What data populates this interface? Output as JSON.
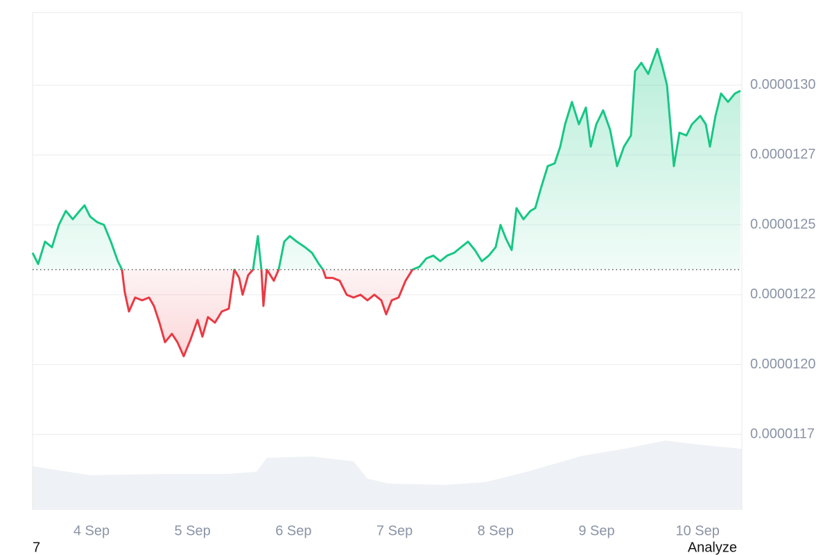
{
  "chart_data": {
    "type": "baseline-area",
    "x": [
      3.417,
      3.472,
      3.54,
      3.609,
      3.677,
      3.746,
      3.815,
      3.883,
      3.931,
      3.986,
      4.055,
      4.124,
      4.192,
      4.261,
      4.302,
      4.329,
      4.371,
      4.432,
      4.501,
      4.57,
      4.618,
      4.673,
      4.728,
      4.796,
      4.851,
      4.913,
      4.981,
      5.05,
      5.098,
      5.153,
      5.222,
      5.29,
      5.359,
      5.414,
      5.462,
      5.496,
      5.551,
      5.599,
      5.647,
      5.682,
      5.702,
      5.736,
      5.805,
      5.853,
      5.908,
      5.963,
      6.032,
      6.114,
      6.183,
      6.251,
      6.292,
      6.32,
      6.388,
      6.457,
      6.526,
      6.594,
      6.663,
      6.732,
      6.8,
      6.869,
      6.917,
      6.972,
      7.04,
      7.109,
      7.178,
      7.246,
      7.315,
      7.384,
      7.452,
      7.521,
      7.59,
      7.658,
      7.727,
      7.795,
      7.864,
      7.933,
      8.001,
      8.049,
      8.104,
      8.159,
      8.207,
      8.276,
      8.345,
      8.393,
      8.448,
      8.516,
      8.585,
      8.64,
      8.688,
      8.756,
      8.825,
      8.894,
      8.942,
      8.997,
      9.065,
      9.134,
      9.203,
      9.271,
      9.34,
      9.381,
      9.443,
      9.511,
      9.601,
      9.649,
      9.697,
      9.765,
      9.82,
      9.889,
      9.944,
      10.026,
      10.081,
      10.122,
      10.177,
      10.232,
      10.301,
      10.369,
      10.424
    ],
    "values": [
      1.24e-05,
      1.236e-05,
      1.244e-05,
      1.242e-05,
      1.25e-05,
      1.255e-05,
      1.252e-05,
      1.255e-05,
      1.257e-05,
      1.253e-05,
      1.251e-05,
      1.25e-05,
      1.244e-05,
      1.237e-05,
      1.234e-05,
      1.226e-05,
      1.219e-05,
      1.224e-05,
      1.223e-05,
      1.224e-05,
      1.221e-05,
      1.215e-05,
      1.208e-05,
      1.211e-05,
      1.208e-05,
      1.203e-05,
      1.209e-05,
      1.216e-05,
      1.21e-05,
      1.217e-05,
      1.215e-05,
      1.219e-05,
      1.22e-05,
      1.234e-05,
      1.231e-05,
      1.225e-05,
      1.232e-05,
      1.234e-05,
      1.246e-05,
      1.234e-05,
      1.221e-05,
      1.234e-05,
      1.23e-05,
      1.234e-05,
      1.244e-05,
      1.246e-05,
      1.244e-05,
      1.242e-05,
      1.24e-05,
      1.236e-05,
      1.234e-05,
      1.231e-05,
      1.231e-05,
      1.23e-05,
      1.225e-05,
      1.224e-05,
      1.225e-05,
      1.223e-05,
      1.225e-05,
      1.223e-05,
      1.218e-05,
      1.223e-05,
      1.224e-05,
      1.23e-05,
      1.234e-05,
      1.235e-05,
      1.238e-05,
      1.239e-05,
      1.237e-05,
      1.239e-05,
      1.24e-05,
      1.242e-05,
      1.244e-05,
      1.241e-05,
      1.237e-05,
      1.239e-05,
      1.242e-05,
      1.25e-05,
      1.245e-05,
      1.241e-05,
      1.256e-05,
      1.252e-05,
      1.255e-05,
      1.256e-05,
      1.263e-05,
      1.271e-05,
      1.272e-05,
      1.278e-05,
      1.286e-05,
      1.294e-05,
      1.286e-05,
      1.292e-05,
      1.278e-05,
      1.286e-05,
      1.291e-05,
      1.284e-05,
      1.271e-05,
      1.278e-05,
      1.282e-05,
      1.305e-05,
      1.308e-05,
      1.304e-05,
      1.313e-05,
      1.307e-05,
      1.3e-05,
      1.271e-05,
      1.283e-05,
      1.282e-05,
      1.286e-05,
      1.289e-05,
      1.286e-05,
      1.278e-05,
      1.289e-05,
      1.297e-05,
      1.294e-05,
      1.297e-05,
      1.298e-05
    ],
    "baseline": 1.234e-05,
    "up_color": "#16c784",
    "down_color": "#ea3943",
    "xlim": [
      3.417,
      10.438
    ],
    "xticks": [
      {
        "value": 4,
        "label": "4 Sep"
      },
      {
        "value": 5,
        "label": "5 Sep"
      },
      {
        "value": 6,
        "label": "6 Sep"
      },
      {
        "value": 7,
        "label": "7 Sep"
      },
      {
        "value": 8,
        "label": "8 Sep"
      },
      {
        "value": 9,
        "label": "9 Sep"
      },
      {
        "value": 10,
        "label": "10 Sep"
      }
    ],
    "ylim": [
      1.148e-05,
      1.326e-05
    ],
    "yticks": [
      {
        "value": 1.3e-05,
        "label": "0.0000130"
      },
      {
        "value": 1.275e-05,
        "label": "0.0000127"
      },
      {
        "value": 1.25e-05,
        "label": "0.0000125"
      },
      {
        "value": 1.225e-05,
        "label": "0.0000122"
      },
      {
        "value": 1.2e-05,
        "label": "0.0000120"
      },
      {
        "value": 1.175e-05,
        "label": "0.0000117"
      }
    ],
    "grid": true,
    "volume": {
      "axis": "y2",
      "color": "#eef1f5",
      "x": [
        3.417,
        3.986,
        4.81,
        5.359,
        5.633,
        5.736,
        6.183,
        6.594,
        6.732,
        6.938,
        7.487,
        7.898,
        8.31,
        8.859,
        9.271,
        9.683,
        9.957,
        10.438
      ],
      "values": [
        63,
        50,
        52,
        52,
        55,
        75,
        77,
        70,
        45,
        38,
        36,
        40,
        55,
        78,
        88,
        100,
        95,
        88
      ]
    },
    "y2lim": [
      0,
      717
    ]
  },
  "footer": {
    "left": "7",
    "right": "Analyze"
  }
}
